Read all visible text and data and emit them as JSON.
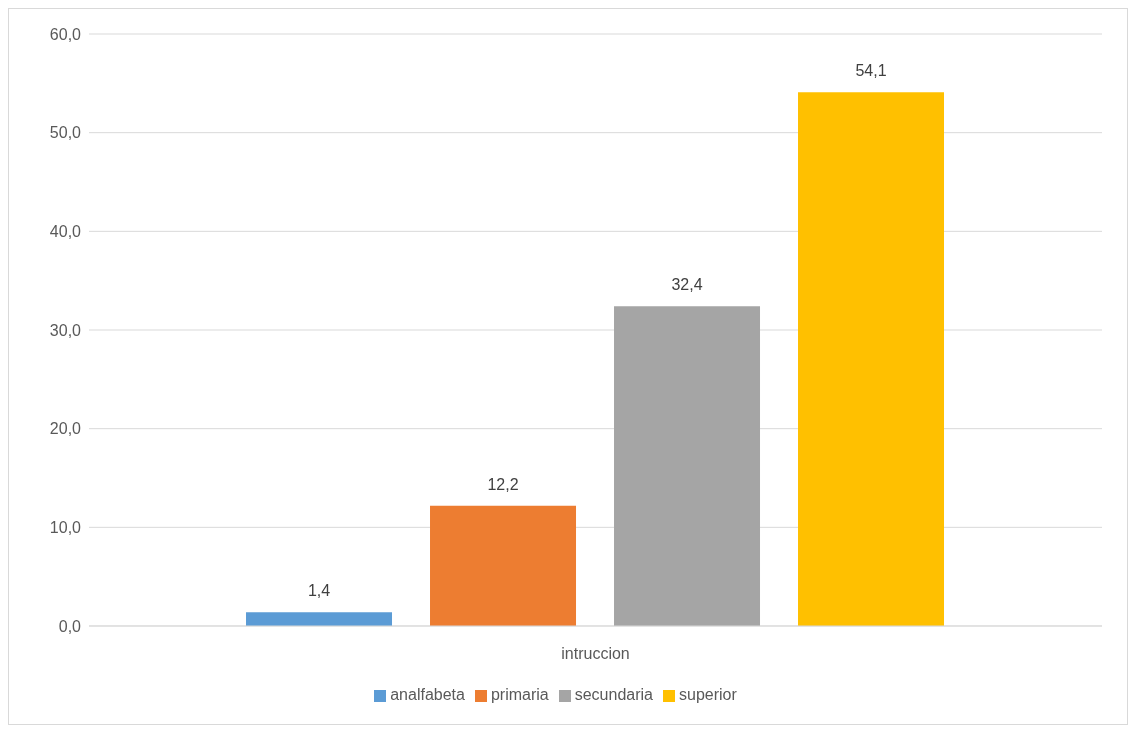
{
  "chart_data": {
    "type": "bar",
    "xlabel": "intruccion",
    "categories": [
      null
    ],
    "series": [
      {
        "name": "analfabeta",
        "color": "#5b9bd5",
        "values": [
          1.4
        ],
        "value_labels": [
          "1,4"
        ]
      },
      {
        "name": "primaria",
        "color": "#ed7d31",
        "values": [
          12.2
        ],
        "value_labels": [
          "12,2"
        ]
      },
      {
        "name": "secundaria",
        "color": "#a5a5a5",
        "values": [
          32.4
        ],
        "value_labels": [
          "32,4"
        ]
      },
      {
        "name": "superior",
        "color": "#ffc000",
        "values": [
          54.1
        ],
        "value_labels": [
          "54,1"
        ]
      }
    ],
    "ylim": [
      0,
      60
    ],
    "yticks": [
      {
        "value": 0,
        "label": "0,0"
      },
      {
        "value": 10,
        "label": "10,0"
      },
      {
        "value": 20,
        "label": "20,0"
      },
      {
        "value": 30,
        "label": "30,0"
      },
      {
        "value": 40,
        "label": "40,0"
      },
      {
        "value": 50,
        "label": "50,0"
      },
      {
        "value": 60,
        "label": "60,0"
      }
    ],
    "grid": "y",
    "legend": "bottom"
  }
}
